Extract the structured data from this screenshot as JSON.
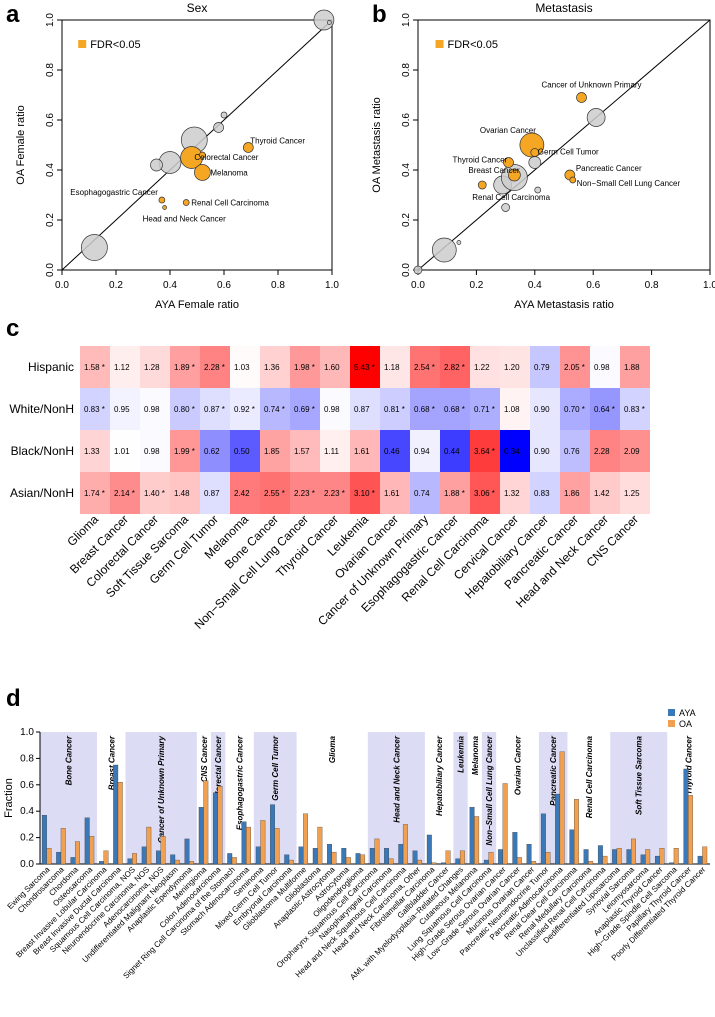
{
  "panels": {
    "a": {
      "letter": "a"
    },
    "b": {
      "letter": "b"
    },
    "c": {
      "letter": "c"
    },
    "d": {
      "letter": "d"
    }
  },
  "chart_data": [
    {
      "id": "a",
      "type": "scatter",
      "title": "Sex",
      "xlabel": "AYA Female ratio",
      "ylabel": "OA Female ratio",
      "xlim": [
        0,
        1
      ],
      "ylim": [
        0,
        1
      ],
      "ticks": [
        "0.0",
        "0.2",
        "0.4",
        "0.6",
        "0.8",
        "1.0"
      ],
      "legend": "FDR<0.05",
      "sig_color": "#f5a623",
      "points": [
        {
          "x": 0.12,
          "y": 0.09,
          "r": 13,
          "sig": false,
          "label": ""
        },
        {
          "x": 0.4,
          "y": 0.43,
          "r": 11,
          "sig": false,
          "label": ""
        },
        {
          "x": 0.35,
          "y": 0.42,
          "r": 6,
          "sig": false,
          "label": ""
        },
        {
          "x": 0.49,
          "y": 0.52,
          "r": 13,
          "sig": false,
          "label": ""
        },
        {
          "x": 0.47,
          "y": 0.46,
          "r": 4,
          "sig": false,
          "label": ""
        },
        {
          "x": 0.58,
          "y": 0.57,
          "r": 5,
          "sig": false,
          "label": ""
        },
        {
          "x": 0.6,
          "y": 0.62,
          "r": 3,
          "sig": false,
          "label": ""
        },
        {
          "x": 0.97,
          "y": 1.0,
          "r": 10,
          "sig": false,
          "label": ""
        },
        {
          "x": 0.99,
          "y": 0.99,
          "r": 2,
          "sig": false,
          "label": ""
        },
        {
          "x": 0.48,
          "y": 0.45,
          "r": 11,
          "sig": true,
          "label": ""
        },
        {
          "x": 0.69,
          "y": 0.49,
          "r": 5,
          "sig": true,
          "label": "Thyroid Cancer"
        },
        {
          "x": 0.52,
          "y": 0.46,
          "r": 3,
          "sig": true,
          "label": "Colorectal Cancer"
        },
        {
          "x": 0.52,
          "y": 0.39,
          "r": 8,
          "sig": true,
          "label": "Melanoma"
        },
        {
          "x": 0.37,
          "y": 0.28,
          "r": 3,
          "sig": true,
          "label": "Esophagogastric Cancer"
        },
        {
          "x": 0.46,
          "y": 0.27,
          "r": 3,
          "sig": true,
          "label": "Renal Cell Carcinoma"
        },
        {
          "x": 0.38,
          "y": 0.25,
          "r": 2,
          "sig": true,
          "label": "Head and Neck Cancer"
        }
      ]
    },
    {
      "id": "b",
      "type": "scatter",
      "title": "Metastasis",
      "xlabel": "AYA Metastasis ratio",
      "ylabel": "OA Metastasis ratio",
      "xlim": [
        0,
        1
      ],
      "ylim": [
        0,
        1
      ],
      "ticks": [
        "0.0",
        "0.2",
        "0.4",
        "0.6",
        "0.8",
        "1.0"
      ],
      "legend": "FDR<0.05",
      "sig_color": "#f5a623",
      "points": [
        {
          "x": 0.0,
          "y": 0.0,
          "r": 4,
          "sig": false,
          "label": ""
        },
        {
          "x": 0.09,
          "y": 0.08,
          "r": 12,
          "sig": false,
          "label": ""
        },
        {
          "x": 0.14,
          "y": 0.11,
          "r": 2,
          "sig": false,
          "label": ""
        },
        {
          "x": 0.3,
          "y": 0.25,
          "r": 4,
          "sig": false,
          "label": ""
        },
        {
          "x": 0.29,
          "y": 0.34,
          "r": 9,
          "sig": false,
          "label": ""
        },
        {
          "x": 0.33,
          "y": 0.37,
          "r": 13,
          "sig": false,
          "label": ""
        },
        {
          "x": 0.41,
          "y": 0.32,
          "r": 3,
          "sig": false,
          "label": ""
        },
        {
          "x": 0.4,
          "y": 0.43,
          "r": 6,
          "sig": false,
          "label": ""
        },
        {
          "x": 0.61,
          "y": 0.61,
          "r": 9,
          "sig": false,
          "label": ""
        },
        {
          "x": 0.56,
          "y": 0.69,
          "r": 5,
          "sig": true,
          "label": "Cancer of Unknown Primary"
        },
        {
          "x": 0.39,
          "y": 0.5,
          "r": 12,
          "sig": true,
          "label": "Ovarian Cancer"
        },
        {
          "x": 0.4,
          "y": 0.47,
          "r": 4,
          "sig": true,
          "label": "Germ Cell Tumor"
        },
        {
          "x": 0.31,
          "y": 0.43,
          "r": 5,
          "sig": true,
          "label": "Thyroid Cancer"
        },
        {
          "x": 0.52,
          "y": 0.38,
          "r": 5,
          "sig": true,
          "label": "Pancreatic Cancer"
        },
        {
          "x": 0.33,
          "y": 0.38,
          "r": 6,
          "sig": true,
          "label": "Breast Cancer"
        },
        {
          "x": 0.53,
          "y": 0.36,
          "r": 3,
          "sig": true,
          "label": "Non−Small Cell Lung Cancer"
        },
        {
          "x": 0.22,
          "y": 0.34,
          "r": 4,
          "sig": true,
          "label": "Renal Cell Carcinoma"
        }
      ]
    },
    {
      "id": "c",
      "type": "heatmap",
      "rows": [
        "Hispanic",
        "White/NonH",
        "Black/NonH",
        "Asian/NonH"
      ],
      "cols": [
        "Glioma",
        "Breast Cancer",
        "Colorectal Cancer",
        "Soft Tissue Sarcoma",
        "Germ Cell Tumor",
        "Melanoma",
        "Bone Cancer",
        "Non−Small Cell Lung Cancer",
        "Thyroid Cancer",
        "Leukemia",
        "Ovarian Cancer",
        "Cancer of Unknown Primary",
        "Esophagogastric Cancer",
        "Renal Cell Carcinoma",
        "Cervical Cancer",
        "Hepatobiliary Cancer",
        "Pancreatic Cancer",
        "Head and Neck Cancer",
        "CNS Cancer"
      ],
      "values": [
        [
          1.58,
          1.12,
          1.28,
          1.89,
          2.28,
          1.03,
          1.36,
          1.98,
          1.6,
          5.43,
          1.18,
          2.54,
          2.82,
          1.22,
          1.2,
          0.79,
          2.05,
          0.98,
          1.88
        ],
        [
          0.83,
          0.95,
          0.98,
          0.8,
          0.87,
          0.92,
          0.74,
          0.69,
          0.98,
          0.87,
          0.81,
          0.68,
          0.68,
          0.71,
          1.08,
          0.9,
          0.7,
          0.64,
          0.83
        ],
        [
          1.33,
          1.01,
          0.98,
          1.99,
          0.62,
          0.5,
          1.85,
          1.57,
          1.11,
          1.61,
          0.46,
          0.94,
          0.44,
          3.64,
          0.34,
          0.9,
          0.76,
          2.28,
          2.09
        ],
        [
          1.74,
          2.14,
          1.4,
          1.48,
          0.87,
          2.42,
          2.55,
          2.23,
          2.23,
          3.1,
          1.61,
          0.74,
          1.88,
          3.06,
          1.32,
          0.83,
          1.86,
          1.42,
          1.25
        ]
      ],
      "labels": [
        [
          "1.58 *",
          "1.12",
          "1.28",
          "1.89 *",
          "2.28 *",
          "1.03",
          "1.36",
          "1.98 *",
          "1.60",
          "5.43 *",
          "1.18",
          "2.54 *",
          "2.82 *",
          "1.22",
          "1.20",
          "0.79",
          "2.05 *",
          "0.98",
          "1.88"
        ],
        [
          "0.83 *",
          "0.95",
          "0.98",
          "0.80 *",
          "0.87 *",
          "0.92 *",
          "0.74 *",
          "0.69 *",
          "0.98",
          "0.87",
          "0.81 *",
          "0.68 *",
          "0.68 *",
          "0.71 *",
          "1.08",
          "0.90",
          "0.70 *",
          "0.64 *",
          "0.83 *"
        ],
        [
          "1.33",
          "1.01",
          "0.98",
          "1.99 *",
          "0.62",
          "0.50",
          "1.85",
          "1.57",
          "1.11",
          "1.61",
          "0.46",
          "0.94",
          "0.44",
          "3.64 *",
          "0.34",
          "0.90",
          "0.76",
          "2.28",
          "2.09"
        ],
        [
          "1.74 *",
          "2.14 *",
          "1.40 *",
          "1.48",
          "0.87",
          "2.42",
          "2.55 *",
          "2.23 *",
          "2.23 *",
          "3.10 *",
          "1.61",
          "0.74",
          "1.88 *",
          "3.06 *",
          "1.32",
          "0.83",
          "1.86",
          "1.42",
          "1.25"
        ]
      ]
    },
    {
      "id": "d",
      "type": "bar",
      "ylabel": "Fraction",
      "ylim": [
        0,
        1
      ],
      "yticks": [
        "0.0",
        "0.2",
        "0.4",
        "0.6",
        "0.8",
        "1.0"
      ],
      "series_names": [
        "AYA",
        "OA"
      ],
      "series_colors": [
        "#3a78b7",
        "#f0a050"
      ],
      "categories": [
        "Ewing Sarcoma",
        "Chondrosarcoma",
        "Chordoma",
        "Osteosarcoma",
        "Breast Invasive Lobular Carcinoma",
        "Breast Invasive Ductal Carcinoma",
        "Squamous Cell Carcinoma, NOS",
        "Neuroendocrine Carcinoma, NOS",
        "Adenocarcinoma, NOS",
        "Undifferentiated Malignant Neoplasm",
        "Anaplastic Ependymoma",
        "Meningioma",
        "Colon Adenocarcinoma",
        "Signet Ring Cell Carcinoma of the Stomach",
        "Stomach Adenocarcinoma",
        "Seminoma",
        "Mixed Germ Cell Tumor",
        "Embryonal Carcinoma",
        "Glioblastoma Multiforme",
        "Glioblastoma",
        "Anaplastic Astrocytoma",
        "Astrocytoma",
        "Oligodendroglioma",
        "Oropharynx Squamous Cell Carcinoma",
        "Nasopharyngeal Carcinoma",
        "Head and Neck Squamous Cell Carcinoma",
        "Head and Neck Carcinoma, Other",
        "Fibrolamellar Carcinoma",
        "Gallbladder Cancer",
        "AML with Myelodysplasia−Related Changes",
        "Cutaneous Melanoma",
        "Lung Squamous Cell Carcinoma",
        "High−Grade Serous Ovarian Cancer",
        "Low−Grade Serous Ovarian Cancer",
        "Mucinous Ovarian Cancer",
        "Pancreatic Neuroendocrine Tumor",
        "Pancreatic Adenocarcinoma",
        "Renal Clear Cell Carcinoma",
        "Renal Medullary Carcinoma",
        "Unclassified Renal Cell Carcinoma",
        "Dedifferentiated Liposarcoma",
        "Synovial Sarcoma",
        "Leiomyosarcoma",
        "Anaplastic Thyroid Cancer",
        "High−Grade Spindle Cell Sarcoma",
        "Papillary Thyroid Cancer",
        "Poorly Differentiated Thyroid Cancer"
      ],
      "series": [
        {
          "name": "AYA",
          "values": [
            0.37,
            0.09,
            0.05,
            0.35,
            0.02,
            0.75,
            0.04,
            0.13,
            0.1,
            0.07,
            0.19,
            0.43,
            0.54,
            0.08,
            0.32,
            0.13,
            0.45,
            0.07,
            0.13,
            0.12,
            0.15,
            0.12,
            0.08,
            0.12,
            0.12,
            0.15,
            0.1,
            0.22,
            0.01,
            0.04,
            0.43,
            0.03,
            0.11,
            0.24,
            0.15,
            0.38,
            0.53,
            0.26,
            0.11,
            0.14,
            0.11,
            0.11,
            0.07,
            0.06,
            0.01,
            0.72,
            0.06
          ]
        },
        {
          "name": "OA",
          "values": [
            0.12,
            0.27,
            0.17,
            0.21,
            0.1,
            0.62,
            0.08,
            0.28,
            0.21,
            0.03,
            0.02,
            0.63,
            0.59,
            0.05,
            0.28,
            0.33,
            0.27,
            0.03,
            0.38,
            0.28,
            0.09,
            0.05,
            0.07,
            0.19,
            0.04,
            0.3,
            0.03,
            0.01,
            0.1,
            0.1,
            0.36,
            0.09,
            0.61,
            0.05,
            0.02,
            0.09,
            0.85,
            0.49,
            0.02,
            0.06,
            0.12,
            0.19,
            0.11,
            0.12,
            0.12,
            0.52,
            0.13
          ]
        }
      ],
      "groups": [
        {
          "label": "Bone Cancer",
          "start": 0,
          "end": 3,
          "shaded": true
        },
        {
          "label": "Breast Cancer",
          "start": 4,
          "end": 5,
          "shaded": false
        },
        {
          "label": "Cancer of Unknown Primary",
          "start": 6,
          "end": 10,
          "shaded": true
        },
        {
          "label": "CNS Cancer",
          "start": 11,
          "end": 11,
          "shaded": false
        },
        {
          "label": "Colorectal Cancer",
          "start": 12,
          "end": 12,
          "shaded": true
        },
        {
          "label": "Esophagogastric Cancer",
          "start": 13,
          "end": 14,
          "shaded": false
        },
        {
          "label": "Germ Cell Tumor",
          "start": 15,
          "end": 17,
          "shaded": true
        },
        {
          "label": "Glioma",
          "start": 18,
          "end": 22,
          "shaded": false
        },
        {
          "label": "Head and Neck Cancer",
          "start": 23,
          "end": 26,
          "shaded": true
        },
        {
          "label": "Hepatobiliary Cancer",
          "start": 27,
          "end": 28,
          "shaded": false
        },
        {
          "label": "Leukemia",
          "start": 29,
          "end": 29,
          "shaded": true
        },
        {
          "label": "Melanoma",
          "start": 30,
          "end": 30,
          "shaded": false
        },
        {
          "label": "Non−Small Cell Lung Cancer",
          "start": 31,
          "end": 31,
          "shaded": true
        },
        {
          "label": "Ovarian Cancer",
          "start": 32,
          "end": 34,
          "shaded": false
        },
        {
          "label": "Pancreatic Cancer",
          "start": 35,
          "end": 36,
          "shaded": true
        },
        {
          "label": "Renal Cell Carcinoma",
          "start": 37,
          "end": 39,
          "shaded": false
        },
        {
          "label": "Soft Tissue Sarcoma",
          "start": 40,
          "end": 43,
          "shaded": true
        },
        {
          "label": "Thyroid Cancer",
          "start": 44,
          "end": 46,
          "shaded": false
        }
      ]
    }
  ]
}
